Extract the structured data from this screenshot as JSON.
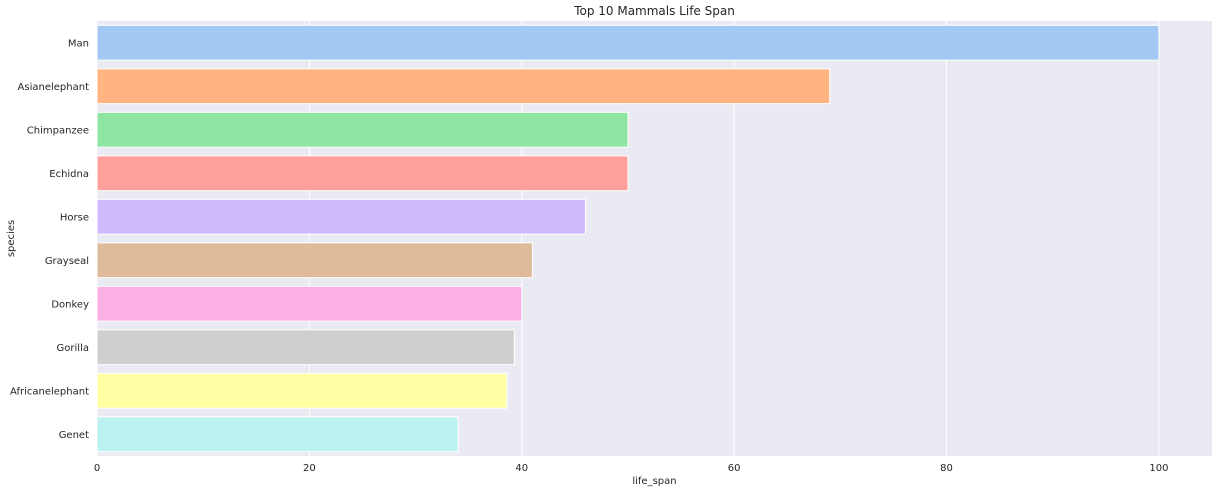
{
  "chart_data": {
    "type": "bar",
    "orientation": "horizontal",
    "title": "Top 10 Mammals Life Span",
    "xlabel": "life_span",
    "ylabel": "species",
    "categories": [
      "Man",
      "Asianelephant",
      "Chimpanzee",
      "Echidna",
      "Horse",
      "Grayseal",
      "Donkey",
      "Gorilla",
      "Africanelephant",
      "Genet"
    ],
    "values": [
      100,
      69,
      50,
      50,
      46,
      41,
      40,
      39.3,
      38.6,
      34
    ],
    "xlim": [
      0,
      105
    ],
    "xticks": [
      0,
      20,
      40,
      60,
      80,
      100
    ],
    "grid": true,
    "colors": [
      "#a1c9f4",
      "#ffb482",
      "#8de5a1",
      "#ff9f9b",
      "#d0bbff",
      "#debb9b",
      "#fab0e4",
      "#cfcfcf",
      "#fffea3",
      "#b9f2f0"
    ],
    "background": "#eaeaf2"
  }
}
